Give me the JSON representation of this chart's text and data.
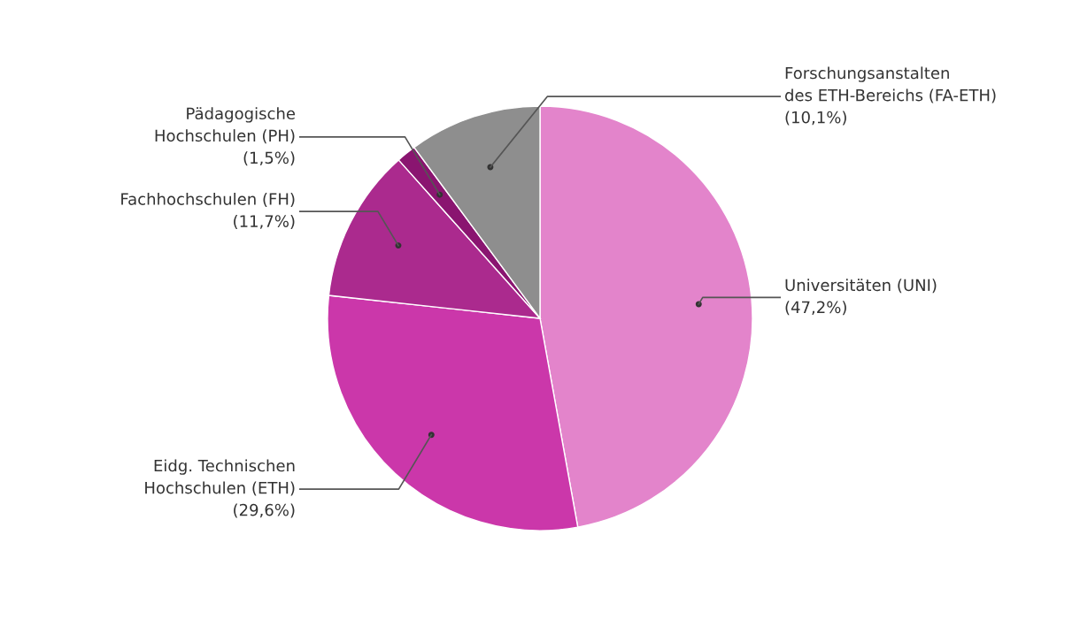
{
  "chart_data": {
    "type": "pie",
    "categories": [
      "Universitäten (UNI)",
      "Eidg. Technischen\nHochschulen (ETH)",
      "Fachhochschulen (FH)",
      "Pädagogische\nHochschulen (PH)",
      "Forschungsanstalten\ndes ETH-Bereichs (FA-ETH)"
    ],
    "values": [
      47.2,
      29.6,
      11.7,
      1.5,
      10.1
    ],
    "value_labels": [
      "(47,2%)",
      "(29,6%)",
      "(11,7%)",
      "(1,5%)",
      "(10,1%)"
    ],
    "colors": [
      "#e384cb",
      "#cb37aa",
      "#ab2a8e",
      "#8a1570",
      "#8e8e8e"
    ]
  }
}
